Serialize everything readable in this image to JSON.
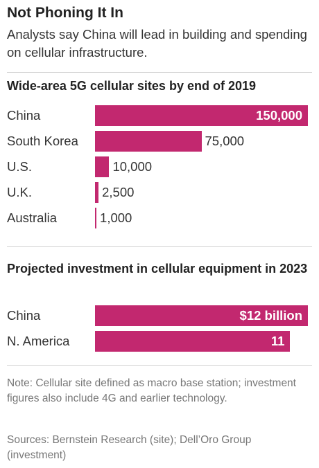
{
  "headline": "Not Phoning It In",
  "deck": "Analysts say China will lead in building and spending on cellular infrastructure.",
  "colors": {
    "bar": "#c2286f",
    "divider": "#d0d0d0",
    "text": "#333333",
    "muted": "#777777"
  },
  "chart_data": [
    {
      "type": "bar",
      "orientation": "horizontal",
      "title": "Wide-area 5G cellular sites by end of 2019",
      "categories": [
        "China",
        "South Korea",
        "U.S.",
        "U.K.",
        "Australia"
      ],
      "values": [
        150000,
        75000,
        10000,
        2500,
        1000
      ],
      "value_labels": [
        "150,000",
        "75,000",
        "10,000",
        "2,500",
        "1,000"
      ],
      "label_inside": [
        true,
        false,
        false,
        false,
        false
      ],
      "xlim": [
        0,
        150000
      ],
      "grid": false,
      "legend": "none"
    },
    {
      "type": "bar",
      "orientation": "horizontal",
      "title": "Projected investment in cellular equipment in 2023",
      "categories": [
        "China",
        "N. America"
      ],
      "values": [
        12,
        11
      ],
      "value_labels": [
        "$12 billion",
        "11"
      ],
      "label_inside": [
        true,
        true
      ],
      "xlim": [
        0,
        12
      ],
      "grid": false,
      "legend": "none"
    }
  ],
  "note": "Note: Cellular site defined as macro base station; investment figures also include 4G and earlier technology.",
  "sources": "Sources: Bernstein Research (site); Dell’Oro Group (investment)"
}
